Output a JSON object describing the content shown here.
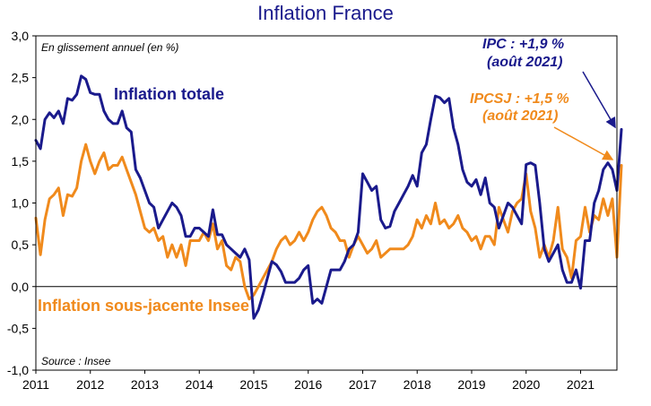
{
  "chart_data": {
    "type": "line",
    "title": "Inflation France",
    "subtitle": "En glissement annuel (en %)",
    "source": "Source : Insee",
    "xlabel": "",
    "ylabel": "",
    "xlim": [
      2011.0,
      2021.667
    ],
    "ylim": [
      -1.0,
      3.0
    ],
    "yticks": [
      3.0,
      2.5,
      2.0,
      1.5,
      1.0,
      0.5,
      0.0,
      -0.5,
      -1.0
    ],
    "ytick_labels": [
      "3,0",
      "2,5",
      "2,0",
      "1,5",
      "1,0",
      "0,5",
      "0,0",
      "-0,5",
      "-1,0"
    ],
    "xticks": [
      2011,
      2012,
      2013,
      2014,
      2015,
      2016,
      2017,
      2018,
      2019,
      2020,
      2021
    ],
    "xtick_labels": [
      "2011",
      "2012",
      "2013",
      "2014",
      "2015",
      "2016",
      "2017",
      "2018",
      "2019",
      "2020",
      "2021"
    ],
    "series": [
      {
        "name": "Inflation totale",
        "color": "#1a1a8c",
        "start": 2011.0,
        "step_months": 1,
        "values": [
          1.75,
          1.65,
          2.0,
          2.08,
          2.02,
          2.1,
          1.95,
          2.25,
          2.23,
          2.3,
          2.52,
          2.48,
          2.32,
          2.3,
          2.3,
          2.1,
          2.0,
          1.95,
          1.95,
          2.1,
          1.9,
          1.85,
          1.4,
          1.3,
          1.15,
          1.0,
          0.95,
          0.7,
          0.8,
          0.9,
          1.0,
          0.95,
          0.85,
          0.6,
          0.6,
          0.7,
          0.7,
          0.65,
          0.6,
          0.92,
          0.62,
          0.62,
          0.5,
          0.45,
          0.4,
          0.35,
          0.45,
          0.32,
          -0.38,
          -0.28,
          -0.1,
          0.1,
          0.3,
          0.26,
          0.18,
          0.05,
          0.05,
          0.05,
          0.1,
          0.2,
          0.25,
          -0.2,
          -0.15,
          -0.2,
          0.0,
          0.2,
          0.2,
          0.2,
          0.3,
          0.45,
          0.5,
          0.65,
          1.35,
          1.25,
          1.15,
          1.2,
          0.8,
          0.7,
          0.72,
          0.9,
          1.0,
          1.1,
          1.2,
          1.33,
          1.2,
          1.6,
          1.7,
          2.0,
          2.28,
          2.26,
          2.2,
          2.25,
          1.9,
          1.7,
          1.4,
          1.25,
          1.2,
          1.28,
          1.1,
          1.3,
          1.0,
          0.95,
          0.7,
          0.85,
          1.0,
          0.95,
          0.85,
          0.75,
          1.46,
          1.48,
          1.45,
          1.0,
          0.45,
          0.3,
          0.4,
          0.5,
          0.2,
          0.05,
          0.05,
          0.2,
          -0.02,
          0.55,
          0.55,
          1.0,
          1.15,
          1.4,
          1.48,
          1.4,
          1.15,
          1.88
        ]
      },
      {
        "name": "Inflation sous-jacente Insee",
        "color": "#f08a1c",
        "start": 2011.0,
        "step_months": 1,
        "values": [
          0.82,
          0.38,
          0.8,
          1.05,
          1.1,
          1.18,
          0.85,
          1.1,
          1.08,
          1.18,
          1.5,
          1.7,
          1.5,
          1.35,
          1.5,
          1.6,
          1.4,
          1.45,
          1.45,
          1.55,
          1.4,
          1.25,
          1.1,
          0.9,
          0.7,
          0.65,
          0.7,
          0.55,
          0.6,
          0.35,
          0.5,
          0.35,
          0.5,
          0.25,
          0.55,
          0.55,
          0.55,
          0.65,
          0.55,
          0.75,
          0.45,
          0.55,
          0.25,
          0.2,
          0.35,
          0.3,
          0.0,
          -0.15,
          -0.1,
          0.0,
          0.1,
          0.2,
          0.3,
          0.45,
          0.55,
          0.6,
          0.5,
          0.55,
          0.65,
          0.55,
          0.65,
          0.8,
          0.9,
          0.95,
          0.85,
          0.7,
          0.65,
          0.55,
          0.55,
          0.35,
          0.5,
          0.6,
          0.5,
          0.4,
          0.45,
          0.55,
          0.35,
          0.4,
          0.45,
          0.45,
          0.45,
          0.45,
          0.5,
          0.6,
          0.8,
          0.7,
          0.85,
          0.75,
          1.0,
          0.75,
          0.8,
          0.7,
          0.75,
          0.85,
          0.7,
          0.65,
          0.55,
          0.6,
          0.45,
          0.6,
          0.6,
          0.5,
          0.95,
          0.8,
          0.65,
          0.9,
          1.0,
          1.05,
          1.35,
          0.9,
          0.7,
          0.35,
          0.5,
          0.35,
          0.55,
          0.95,
          0.45,
          0.35,
          0.1,
          0.55,
          0.6,
          0.95,
          0.65,
          0.85,
          0.8,
          1.05,
          0.85,
          1.05,
          0.35,
          1.45
        ]
      }
    ],
    "series_labels": {
      "total": "Inflation totale",
      "core": "Inflation sous-jacente Insee"
    },
    "annotations": [
      {
        "line1": "IPC : +1,9 %",
        "line2": "(août 2021)",
        "color": "#1a1a8c"
      },
      {
        "line1": "IPCSJ : +1,5 %",
        "line2": "(août 2021)",
        "color": "#f08a1c"
      }
    ]
  }
}
